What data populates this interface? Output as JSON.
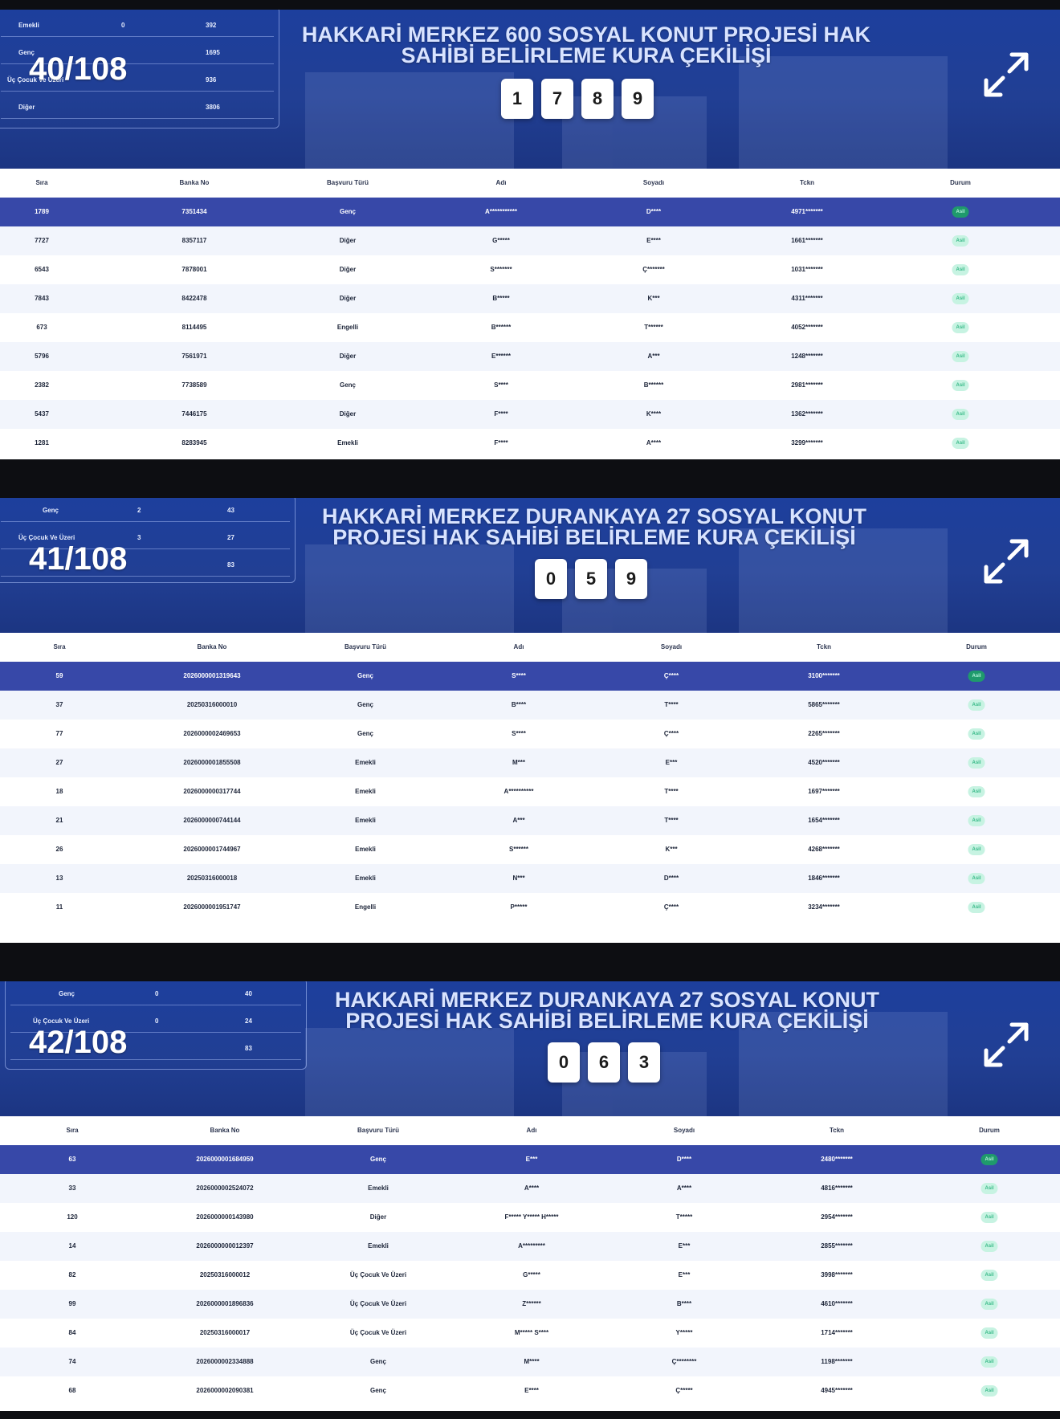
{
  "columns": [
    "Sıra",
    "Banka No",
    "Başvuru Türü",
    "Adı",
    "Soyadı",
    "Tckn",
    "Durum"
  ],
  "slides": [
    {
      "counter": "40/108",
      "title_line1": "HAKKARİ MERKEZ 600 SOSYAL KONUT PROJESİ HAK",
      "title_line2": "SAHİBİ BELİRLEME KURA ÇEKİLİŞİ",
      "digits": [
        "1",
        "7",
        "8",
        "9"
      ],
      "stats": [
        {
          "label": "Emekli",
          "a": "0",
          "b": "392"
        },
        {
          "label": "Genç",
          "a": "",
          "b": "1695"
        },
        {
          "label": "Üç Çocuk Ve Üzeri",
          "a": "",
          "b": "936"
        },
        {
          "label": "Diğer",
          "a": "",
          "b": "3806"
        }
      ],
      "rows": [
        [
          "1789",
          "7351434",
          "Genç",
          "A***********",
          "D****",
          "4971*******",
          "Asil"
        ],
        [
          "7727",
          "8357117",
          "Diğer",
          "G*****",
          "E****",
          "1661*******",
          "Asil"
        ],
        [
          "6543",
          "7878001",
          "Diğer",
          "S*******",
          "Ç*******",
          "1031*******",
          "Asil"
        ],
        [
          "7843",
          "8422478",
          "Diğer",
          "B*****",
          "K***",
          "4311*******",
          "Asil"
        ],
        [
          "673",
          "8114495",
          "Engelli",
          "B******",
          "T******",
          "4052*******",
          "Asil"
        ],
        [
          "5796",
          "7561971",
          "Diğer",
          "E******",
          "A***",
          "1248*******",
          "Asil"
        ],
        [
          "2382",
          "7738589",
          "Genç",
          "S****",
          "B******",
          "2981*******",
          "Asil"
        ],
        [
          "5437",
          "7446175",
          "Diğer",
          "F****",
          "K****",
          "1362*******",
          "Asil"
        ],
        [
          "1281",
          "8283945",
          "Emekli",
          "F****",
          "A****",
          "3299*******",
          "Asil"
        ]
      ]
    },
    {
      "counter": "41/108",
      "title_line1": "HAKKARİ MERKEZ DURANKAYA 27 SOSYAL KONUT",
      "title_line2": "PROJESİ HAK SAHİBİ BELİRLEME KURA ÇEKİLİŞİ",
      "digits": [
        "0",
        "5",
        "9"
      ],
      "stats": [
        {
          "label": "Genç",
          "a": "2",
          "b": "43"
        },
        {
          "label": "Üç Çocuk Ve Üzeri",
          "a": "3",
          "b": "27"
        },
        {
          "label": "",
          "a": "",
          "b": "83"
        }
      ],
      "rows": [
        [
          "59",
          "2026000001319643",
          "Genç",
          "S****",
          "Ç****",
          "3100*******",
          "Asil"
        ],
        [
          "37",
          "20250316000010",
          "Genç",
          "B****",
          "T****",
          "5865*******",
          "Asil"
        ],
        [
          "77",
          "2026000002469653",
          "Genç",
          "S****",
          "Ç****",
          "2265*******",
          "Asil"
        ],
        [
          "27",
          "2026000001855508",
          "Emekli",
          "M***",
          "E***",
          "4520*******",
          "Asil"
        ],
        [
          "18",
          "2026000000317744",
          "Emekli",
          "A**********",
          "T****",
          "1697*******",
          "Asil"
        ],
        [
          "21",
          "2026000000744144",
          "Emekli",
          "A***",
          "T****",
          "1654*******",
          "Asil"
        ],
        [
          "26",
          "2026000001744967",
          "Emekli",
          "S******",
          "K***",
          "4268*******",
          "Asil"
        ],
        [
          "13",
          "20250316000018",
          "Emekli",
          "N***",
          "D****",
          "1846*******",
          "Asil"
        ],
        [
          "11",
          "2026000001951747",
          "Engelli",
          "P*****",
          "Ç****",
          "3234*******",
          "Asil"
        ]
      ]
    },
    {
      "counter": "42/108",
      "title_line1": "HAKKARİ MERKEZ DURANKAYA 27 SOSYAL KONUT",
      "title_line2": "PROJESİ HAK SAHİBİ BELİRLEME KURA ÇEKİLİŞİ",
      "digits": [
        "0",
        "6",
        "3"
      ],
      "stats": [
        {
          "label": "Genç",
          "a": "0",
          "b": "40"
        },
        {
          "label": "Üç Çocuk Ve Üzeri",
          "a": "0",
          "b": "24"
        },
        {
          "label": "",
          "a": "",
          "b": "83"
        }
      ],
      "rows": [
        [
          "63",
          "2026000001684959",
          "Genç",
          "E***",
          "D****",
          "2480*******",
          "Asil"
        ],
        [
          "33",
          "2026000002524072",
          "Emekli",
          "A****",
          "A****",
          "4816*******",
          "Asil"
        ],
        [
          "120",
          "2026000000143980",
          "Diğer",
          "F***** Y***** H*****",
          "T*****",
          "2954*******",
          "Asil"
        ],
        [
          "14",
          "2026000000012397",
          "Emekli",
          "A*********",
          "E***",
          "2855*******",
          "Asil"
        ],
        [
          "82",
          "20250316000012",
          "Üç Çocuk Ve Üzeri",
          "G*****",
          "E***",
          "3998*******",
          "Asil"
        ],
        [
          "99",
          "2026000001896836",
          "Üç Çocuk Ve Üzeri",
          "Z******",
          "B****",
          "4610*******",
          "Asil"
        ],
        [
          "84",
          "20250316000017",
          "Üç Çocuk Ve Üzeri",
          "M***** S****",
          "Y*****",
          "1714*******",
          "Asil"
        ],
        [
          "74",
          "2026000002334888",
          "Genç",
          "M****",
          "Ç********",
          "1198*******",
          "Asil"
        ],
        [
          "68",
          "2026000002090381",
          "Genç",
          "E****",
          "Ç*****",
          "4945*******",
          "Asil"
        ]
      ]
    }
  ]
}
